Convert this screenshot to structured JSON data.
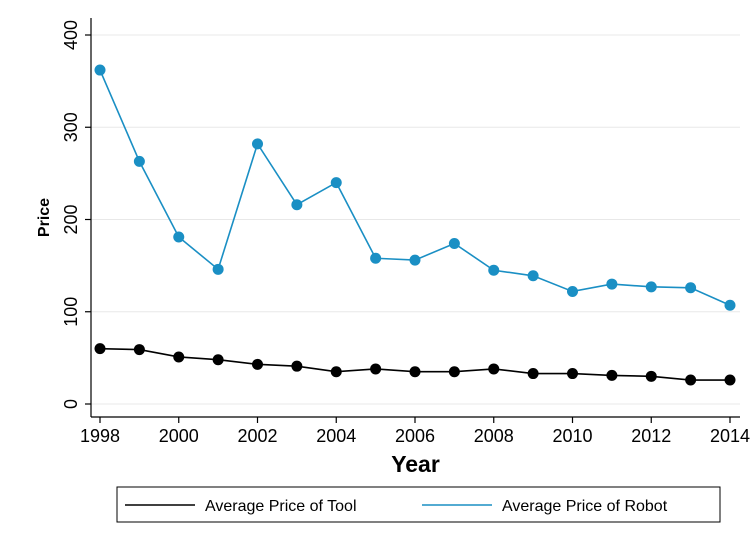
{
  "chart_data": {
    "type": "line",
    "title": "",
    "xlabel": "Year",
    "ylabel": "Price",
    "x": [
      1998,
      1999,
      2000,
      2001,
      2002,
      2003,
      2004,
      2005,
      2006,
      2007,
      2008,
      2009,
      2010,
      2011,
      2012,
      2013,
      2014
    ],
    "xlim": [
      1998,
      2014
    ],
    "ylim": [
      0,
      400
    ],
    "xticks": [
      "1998",
      "2000",
      "2002",
      "2004",
      "2006",
      "2008",
      "2010",
      "2012",
      "2014"
    ],
    "yticks": [
      "0",
      "100",
      "200",
      "300",
      "400"
    ],
    "grid": true,
    "legend": "bottom",
    "series": [
      {
        "name": "Average Price of Tool",
        "color": "#000000",
        "values": [
          60,
          59,
          51,
          48,
          43,
          41,
          35,
          38,
          35,
          35,
          38,
          33,
          33,
          31,
          30,
          26,
          26
        ]
      },
      {
        "name": "Average Price of Robot",
        "color": "#1a8fc4",
        "values": [
          362,
          263,
          181,
          146,
          282,
          216,
          240,
          158,
          156,
          174,
          145,
          139,
          122,
          130,
          127,
          126,
          107
        ]
      }
    ]
  }
}
